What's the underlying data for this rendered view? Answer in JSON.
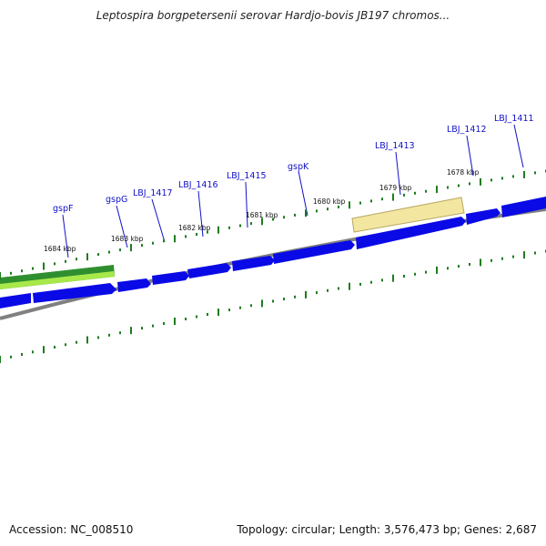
{
  "title": "Leptospira borgpetersenii serovar Hardjo-bovis JB197 chromos...",
  "footer": {
    "accession": "Accession: NC_008510",
    "summary": "Topology: circular; Length: 3,576,473 bp; Genes: 2,687"
  },
  "colors": {
    "gene_forward": "#0a0ae6",
    "backbone": "#808080",
    "tick": "#1e7d1e",
    "gene_label": "#1010c8",
    "highlight_green": "#2f8f2f",
    "highlight_yellow": "#f3e6a0"
  },
  "scale_labels": [
    "1684 kbp",
    "1683 kbp",
    "1682 kbp",
    "1681 kbp",
    "1680 kbp",
    "1679 kbp",
    "1678 kbp"
  ],
  "gene_labels": [
    "gspF",
    "gspG",
    "LBJ_1417",
    "LBJ_1416",
    "LBJ_1415",
    "gspK",
    "LBJ_1413",
    "LBJ_1412",
    "LBJ_1411"
  ]
}
